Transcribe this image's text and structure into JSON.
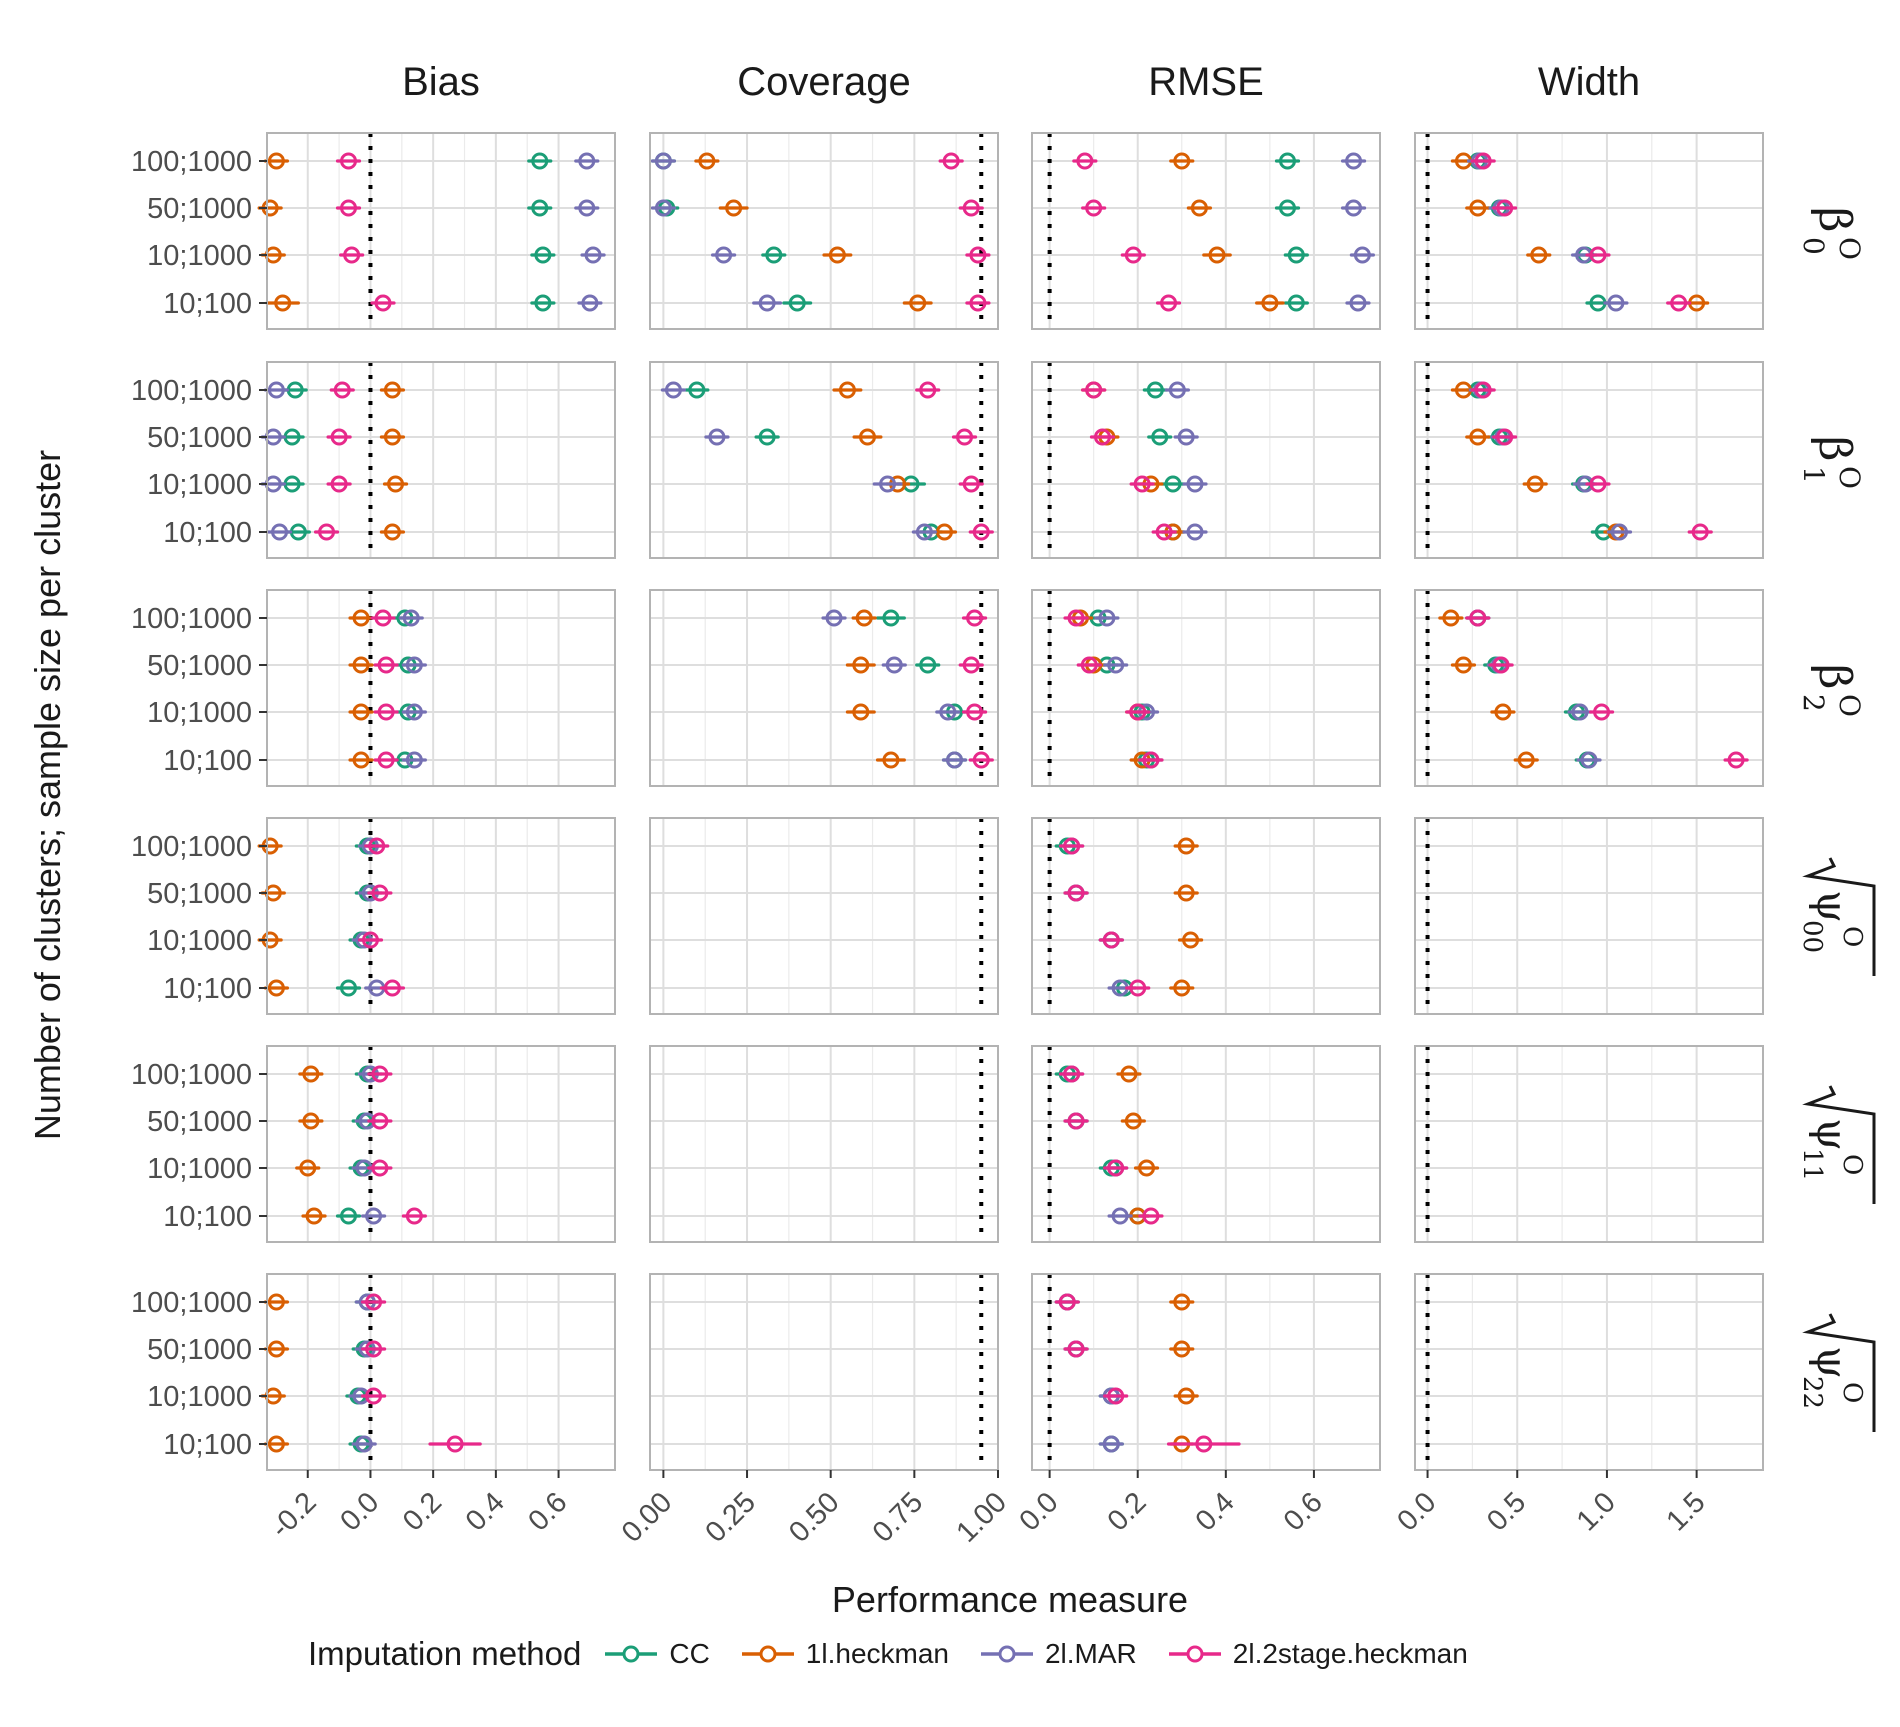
{
  "chart_data": {
    "type": "scatter",
    "layout": "faceted point-range grid",
    "xlabel": "Performance measure",
    "ylabel": "Number of clusters; sample size per cluster",
    "columns": [
      {
        "key": "bias",
        "title": "Bias",
        "xlim": [
          -0.33,
          0.78
        ],
        "ticks": [
          -0.2,
          0.0,
          0.2,
          0.4,
          0.6
        ],
        "tick_labels": [
          "-0.2",
          "0.0",
          "0.2",
          "0.4",
          "0.6"
        ],
        "reference": 0.0
      },
      {
        "key": "coverage",
        "title": "Coverage",
        "xlim": [
          -0.04,
          1.0
        ],
        "ticks": [
          0.0,
          0.25,
          0.5,
          0.75,
          1.0
        ],
        "tick_labels": [
          "0.00",
          "0.25",
          "0.50",
          "0.75",
          "1.00"
        ],
        "reference": 0.95
      },
      {
        "key": "rmse",
        "title": "RMSE",
        "xlim": [
          -0.04,
          0.75
        ],
        "ticks": [
          0.0,
          0.2,
          0.4,
          0.6
        ],
        "tick_labels": [
          "0.0",
          "0.2",
          "0.4",
          "0.6"
        ],
        "reference": 0.0
      },
      {
        "key": "width",
        "title": "Width",
        "xlim": [
          -0.07,
          1.87
        ],
        "ticks": [
          0.0,
          0.5,
          1.0,
          1.5
        ],
        "tick_labels": [
          "0.0",
          "0.5",
          "1.0",
          "1.5"
        ],
        "reference": 0.0
      }
    ],
    "row_categories": [
      "100;1000",
      "50;1000",
      "10;1000",
      "10;100"
    ],
    "facet_rows": [
      {
        "key": "b0",
        "label": {
          "kind": "beta",
          "sub": "0",
          "sup": "O"
        }
      },
      {
        "key": "b1",
        "label": {
          "kind": "beta",
          "sub": "1",
          "sup": "O"
        }
      },
      {
        "key": "b2",
        "label": {
          "kind": "beta",
          "sub": "2",
          "sup": "O"
        }
      },
      {
        "key": "p00",
        "label": {
          "kind": "sqrtpsi",
          "sub": "00",
          "sup": "O"
        }
      },
      {
        "key": "p11",
        "label": {
          "kind": "sqrtpsi",
          "sub": "11",
          "sup": "O"
        }
      },
      {
        "key": "p22",
        "label": {
          "kind": "sqrtpsi",
          "sub": "22",
          "sup": "O"
        }
      }
    ],
    "series": [
      {
        "name": "CC",
        "color": "#1b9e77",
        "values": {
          "b0": {
            "bias": [
              0.54,
              0.54,
              0.55,
              0.55
            ],
            "coverage": [
              0.0,
              0.01,
              0.33,
              0.4
            ],
            "rmse": [
              0.54,
              0.54,
              0.56,
              0.56
            ],
            "width": [
              0.28,
              0.4,
              0.88,
              0.95
            ]
          },
          "b1": {
            "bias": [
              -0.24,
              -0.25,
              -0.25,
              -0.23
            ],
            "coverage": [
              0.1,
              0.31,
              0.74,
              0.8
            ],
            "rmse": [
              0.24,
              0.25,
              0.28,
              0.28
            ],
            "width": [
              0.28,
              0.4,
              0.87,
              0.98
            ]
          },
          "b2": {
            "bias": [
              0.11,
              0.12,
              0.12,
              0.11
            ],
            "coverage": [
              0.68,
              0.79,
              0.87,
              0.87
            ],
            "rmse": [
              0.11,
              0.13,
              0.21,
              0.22
            ],
            "width": [
              0.28,
              0.38,
              0.83,
              0.89
            ]
          },
          "p00": {
            "bias": [
              -0.01,
              -0.01,
              -0.03,
              -0.07
            ],
            "coverage": [],
            "rmse": [
              0.04,
              0.06,
              0.14,
              0.17
            ],
            "width": []
          },
          "p11": {
            "bias": [
              -0.01,
              -0.02,
              -0.03,
              -0.07
            ],
            "coverage": [],
            "rmse": [
              0.04,
              0.06,
              0.14,
              0.2
            ],
            "width": []
          },
          "p22": {
            "bias": [
              -0.01,
              -0.02,
              -0.04,
              -0.03
            ],
            "coverage": [],
            "rmse": [
              0.04,
              0.06,
              0.14,
              0.14
            ],
            "width": []
          }
        },
        "errors": {
          "b0.coverage.2": 0.03,
          "b0.coverage.3": 0.04,
          "b1.coverage.2": 0.04,
          "b1.coverage.1": 0.03,
          "b2.coverage.0": 0.04
        }
      },
      {
        "name": "1l.heckman",
        "color": "#d95f02",
        "values": {
          "b0": {
            "bias": [
              -0.3,
              -0.32,
              -0.31,
              -0.28
            ],
            "coverage": [
              0.13,
              0.21,
              0.52,
              0.76
            ],
            "rmse": [
              0.3,
              0.34,
              0.38,
              0.5
            ],
            "width": [
              0.2,
              0.28,
              0.62,
              1.5
            ]
          },
          "b1": {
            "bias": [
              0.07,
              0.07,
              0.08,
              0.07
            ],
            "coverage": [
              0.55,
              0.61,
              0.7,
              0.84
            ],
            "rmse": [
              0.1,
              0.13,
              0.23,
              0.28
            ],
            "width": [
              0.2,
              0.28,
              0.6,
              1.05
            ]
          },
          "b2": {
            "bias": [
              -0.03,
              -0.03,
              -0.03,
              -0.03
            ],
            "coverage": [
              0.6,
              0.59,
              0.59,
              0.68
            ],
            "rmse": [
              0.07,
              0.1,
              0.2,
              0.21
            ],
            "width": [
              0.13,
              0.2,
              0.42,
              0.55
            ]
          },
          "p00": {
            "bias": [
              -0.32,
              -0.31,
              -0.32,
              -0.3
            ],
            "coverage": [],
            "rmse": [
              0.31,
              0.31,
              0.32,
              0.3
            ],
            "width": []
          },
          "p11": {
            "bias": [
              -0.19,
              -0.19,
              -0.2,
              -0.18
            ],
            "coverage": [],
            "rmse": [
              0.18,
              0.19,
              0.22,
              0.2
            ],
            "width": []
          },
          "p22": {
            "bias": [
              -0.3,
              -0.3,
              -0.31,
              -0.3
            ],
            "coverage": [],
            "rmse": [
              0.3,
              0.3,
              0.31,
              0.3
            ],
            "width": []
          }
        },
        "errors": {
          "b0.coverage.1": 0.04,
          "b0.coverage.2": 0.04,
          "b0.coverage.3": 0.04,
          "b0.bias.3": 0.05,
          "b0.rmse.2": 0.03,
          "b0.rmse.3": 0.03,
          "b1.coverage.0": 0.04,
          "b1.coverage.1": 0.04,
          "b2.coverage.1": 0.04,
          "b2.coverage.2": 0.04,
          "b2.coverage.3": 0.04,
          "b2.width.3": 0.06
        }
      },
      {
        "name": "2l.MAR",
        "color": "#7570b3",
        "values": {
          "b0": {
            "bias": [
              0.69,
              0.69,
              0.71,
              0.7
            ],
            "coverage": [
              0.0,
              0.0,
              0.18,
              0.31
            ],
            "rmse": [
              0.69,
              0.69,
              0.71,
              0.7
            ],
            "width": [
              0.29,
              0.41,
              0.87,
              1.05
            ]
          },
          "b1": {
            "bias": [
              -0.3,
              -0.31,
              -0.31,
              -0.29
            ],
            "coverage": [
              0.03,
              0.16,
              0.67,
              0.78
            ],
            "rmse": [
              0.29,
              0.31,
              0.33,
              0.33
            ],
            "width": [
              0.3,
              0.42,
              0.88,
              1.07
            ]
          },
          "b2": {
            "bias": [
              0.13,
              0.14,
              0.14,
              0.14
            ],
            "coverage": [
              0.51,
              0.69,
              0.85,
              0.87
            ],
            "rmse": [
              0.13,
              0.15,
              0.22,
              0.23
            ],
            "width": [
              0.28,
              0.4,
              0.85,
              0.9
            ]
          },
          "p00": {
            "bias": [
              -0.0,
              0.0,
              -0.02,
              0.02
            ],
            "coverage": [],
            "rmse": [
              0.05,
              0.06,
              0.14,
              0.16
            ],
            "width": []
          },
          "p11": {
            "bias": [
              -0.0,
              -0.01,
              -0.02,
              0.01
            ],
            "coverage": [],
            "rmse": [
              0.05,
              0.06,
              0.15,
              0.16
            ],
            "width": []
          },
          "p22": {
            "bias": [
              -0.01,
              -0.01,
              -0.03,
              -0.02
            ],
            "coverage": [],
            "rmse": [
              0.04,
              0.06,
              0.14,
              0.14
            ],
            "width": []
          }
        },
        "errors": {
          "b0.coverage.3": 0.04,
          "b1.coverage.2": 0.04,
          "b2.coverage.0": 0.03,
          "b2.coverage.2": 0.03
        }
      },
      {
        "name": "2l.2stage.heckman",
        "color": "#e7298a",
        "values": {
          "b0": {
            "bias": [
              -0.07,
              -0.07,
              -0.06,
              0.04
            ],
            "coverage": [
              0.86,
              0.92,
              0.94,
              0.94
            ],
            "rmse": [
              0.08,
              0.1,
              0.19,
              0.27
            ],
            "width": [
              0.31,
              0.43,
              0.95,
              1.4
            ]
          },
          "b1": {
            "bias": [
              -0.09,
              -0.1,
              -0.1,
              -0.14
            ],
            "coverage": [
              0.79,
              0.9,
              0.92,
              0.95
            ],
            "rmse": [
              0.1,
              0.12,
              0.21,
              0.26
            ],
            "width": [
              0.31,
              0.43,
              0.95,
              1.52
            ]
          },
          "b2": {
            "bias": [
              0.04,
              0.05,
              0.05,
              0.05
            ],
            "coverage": [
              0.93,
              0.92,
              0.93,
              0.95
            ],
            "rmse": [
              0.06,
              0.09,
              0.2,
              0.23
            ],
            "width": [
              0.28,
              0.41,
              0.97,
              1.72
            ]
          },
          "p00": {
            "bias": [
              0.02,
              0.03,
              0.0,
              0.07
            ],
            "coverage": [],
            "rmse": [
              0.05,
              0.06,
              0.14,
              0.2
            ],
            "width": []
          },
          "p11": {
            "bias": [
              0.03,
              0.03,
              0.03,
              0.14
            ],
            "coverage": [],
            "rmse": [
              0.05,
              0.06,
              0.15,
              0.23
            ],
            "width": []
          },
          "p22": {
            "bias": [
              0.01,
              0.01,
              0.01,
              0.27
            ],
            "coverage": [],
            "rmse": [
              0.04,
              0.06,
              0.15,
              0.35
            ],
            "width": []
          }
        },
        "errors": {
          "b0.width.3": 0.05,
          "b1.width.3": 0.05,
          "b1.coverage.0": 0.03,
          "p22.bias.3": 0.08,
          "p22.rmse.3": 0.08,
          "b2.width.3": 0.05
        }
      }
    ],
    "legend": {
      "title": "Imputation method",
      "position": "bottom"
    },
    "grid": true
  }
}
